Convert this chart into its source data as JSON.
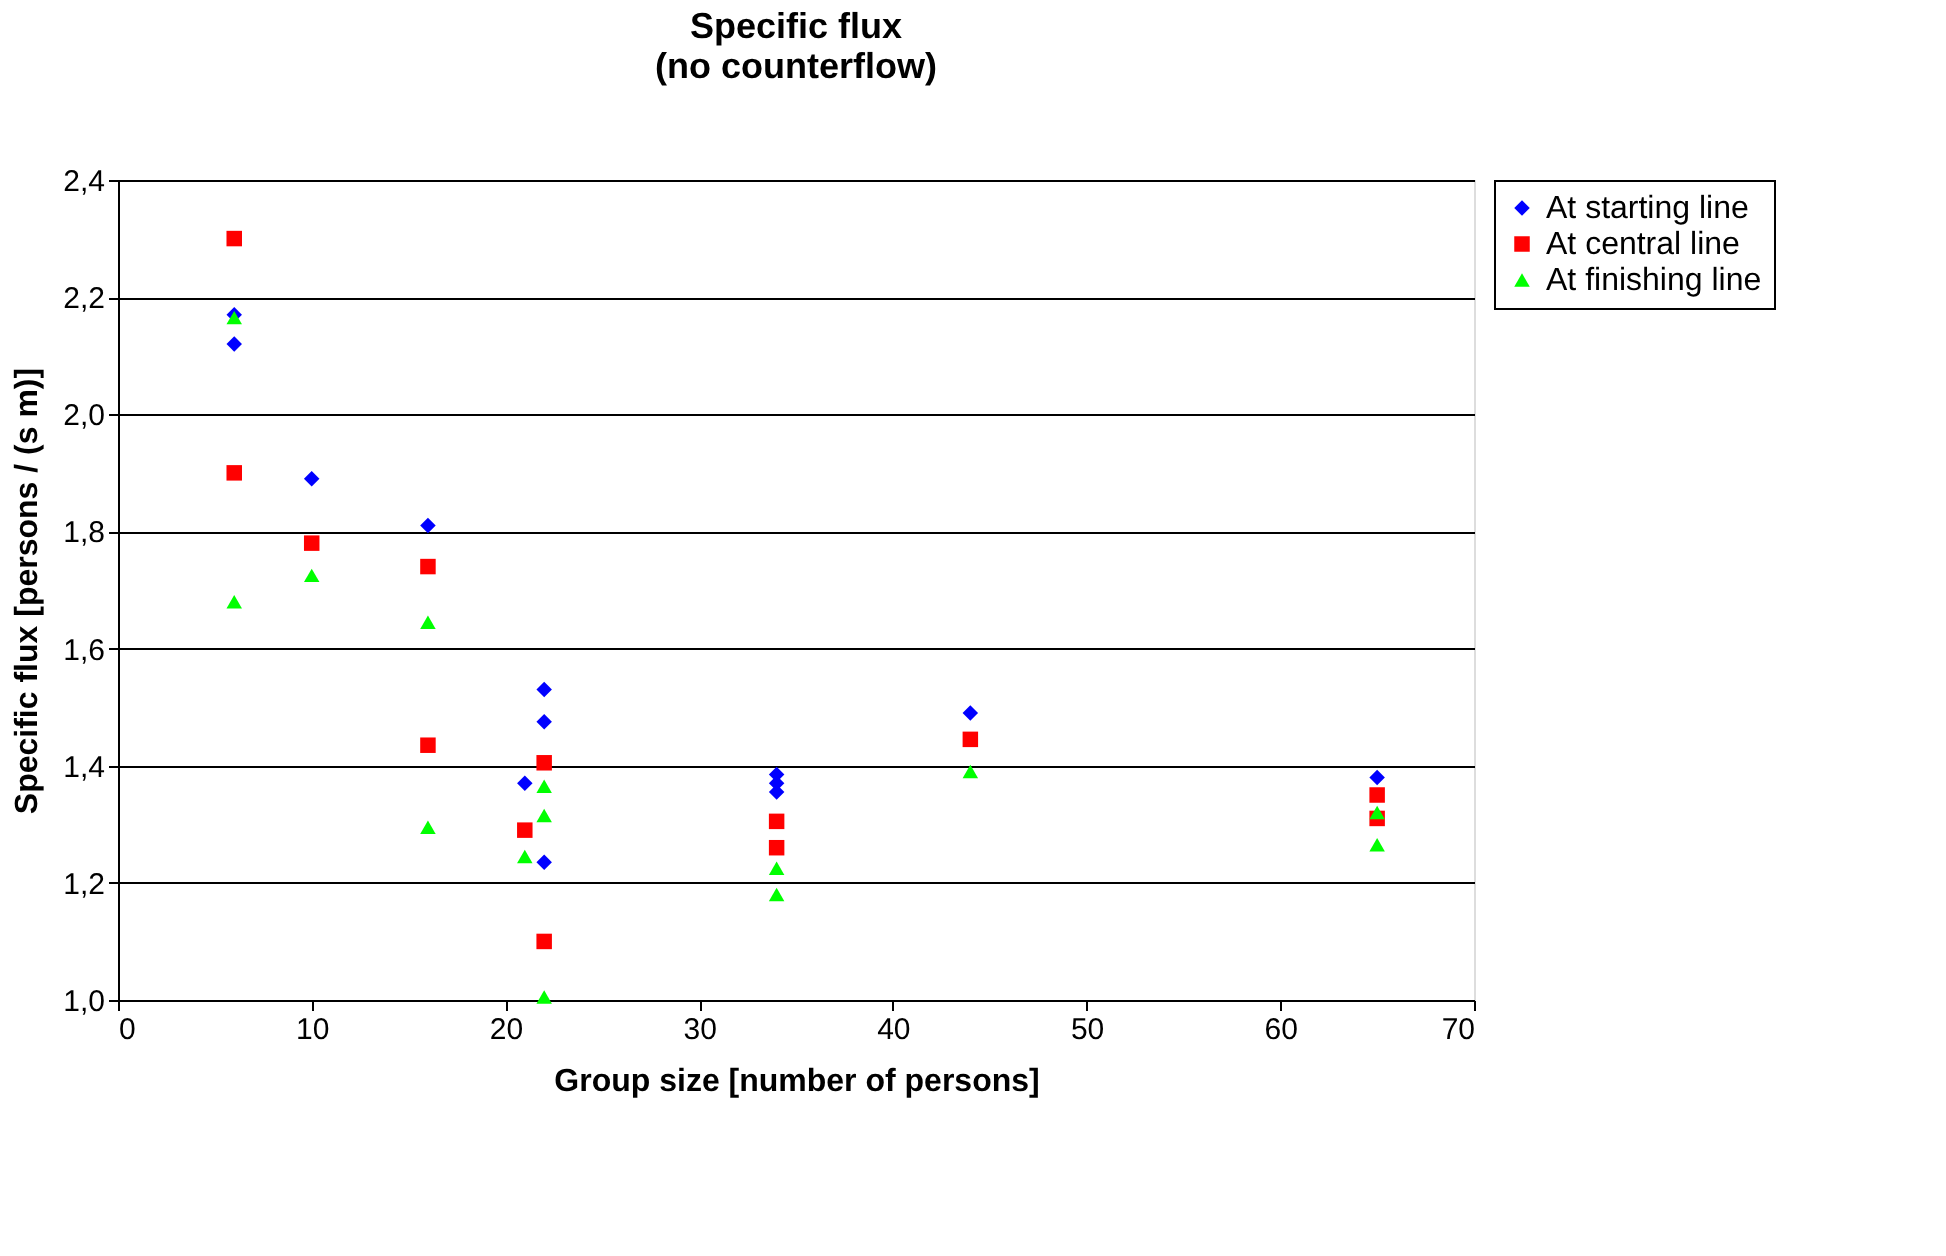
{
  "chart_data": {
    "type": "scatter",
    "title": [
      "Specific flux",
      "(no counterflow)"
    ],
    "xlabel": "Group size [number of persons]",
    "ylabel": "Specific flux [persons / (s m)]",
    "xlim": [
      0,
      70
    ],
    "xticks": [
      0,
      10,
      20,
      30,
      40,
      50,
      60,
      70
    ],
    "ylim": [
      1.0,
      2.4
    ],
    "yticks": [
      {
        "value": 1.0,
        "label": "1,0"
      },
      {
        "value": 1.2,
        "label": "1,2"
      },
      {
        "value": 1.4,
        "label": "1,4"
      },
      {
        "value": 1.6,
        "label": "1,6"
      },
      {
        "value": 1.8,
        "label": "1,8"
      },
      {
        "value": 2.0,
        "label": "2,0"
      },
      {
        "value": 2.2,
        "label": "2,2"
      },
      {
        "value": 2.4,
        "label": "2,4"
      }
    ],
    "grid": "y",
    "legend": "right",
    "series": [
      {
        "name": "At starting line",
        "color": "#0000ff",
        "marker": "diamond",
        "x": [
          6,
          6,
          10,
          16,
          21,
          22,
          22,
          22,
          34,
          34,
          34,
          44,
          65
        ],
        "values": [
          2.17,
          2.12,
          1.89,
          1.81,
          1.37,
          1.53,
          1.475,
          1.235,
          1.385,
          1.37,
          1.355,
          1.49,
          1.38
        ]
      },
      {
        "name": "At central line",
        "color": "#ff0000",
        "marker": "square",
        "x": [
          6,
          6,
          10,
          16,
          16,
          21,
          22,
          22,
          34,
          34,
          44,
          65,
          65
        ],
        "values": [
          2.3,
          1.9,
          1.78,
          1.74,
          1.435,
          1.29,
          1.405,
          1.1,
          1.305,
          1.26,
          1.445,
          1.35,
          1.31
        ]
      },
      {
        "name": "At finishing line",
        "color": "#00ff00",
        "marker": "triangle",
        "x": [
          6,
          6,
          10,
          16,
          16,
          21,
          22,
          22,
          22,
          34,
          34,
          44,
          65,
          65
        ],
        "values": [
          2.165,
          1.68,
          1.725,
          1.645,
          1.295,
          1.245,
          1.365,
          1.315,
          1.005,
          1.225,
          1.18,
          1.39,
          1.32,
          1.265
        ]
      }
    ]
  }
}
